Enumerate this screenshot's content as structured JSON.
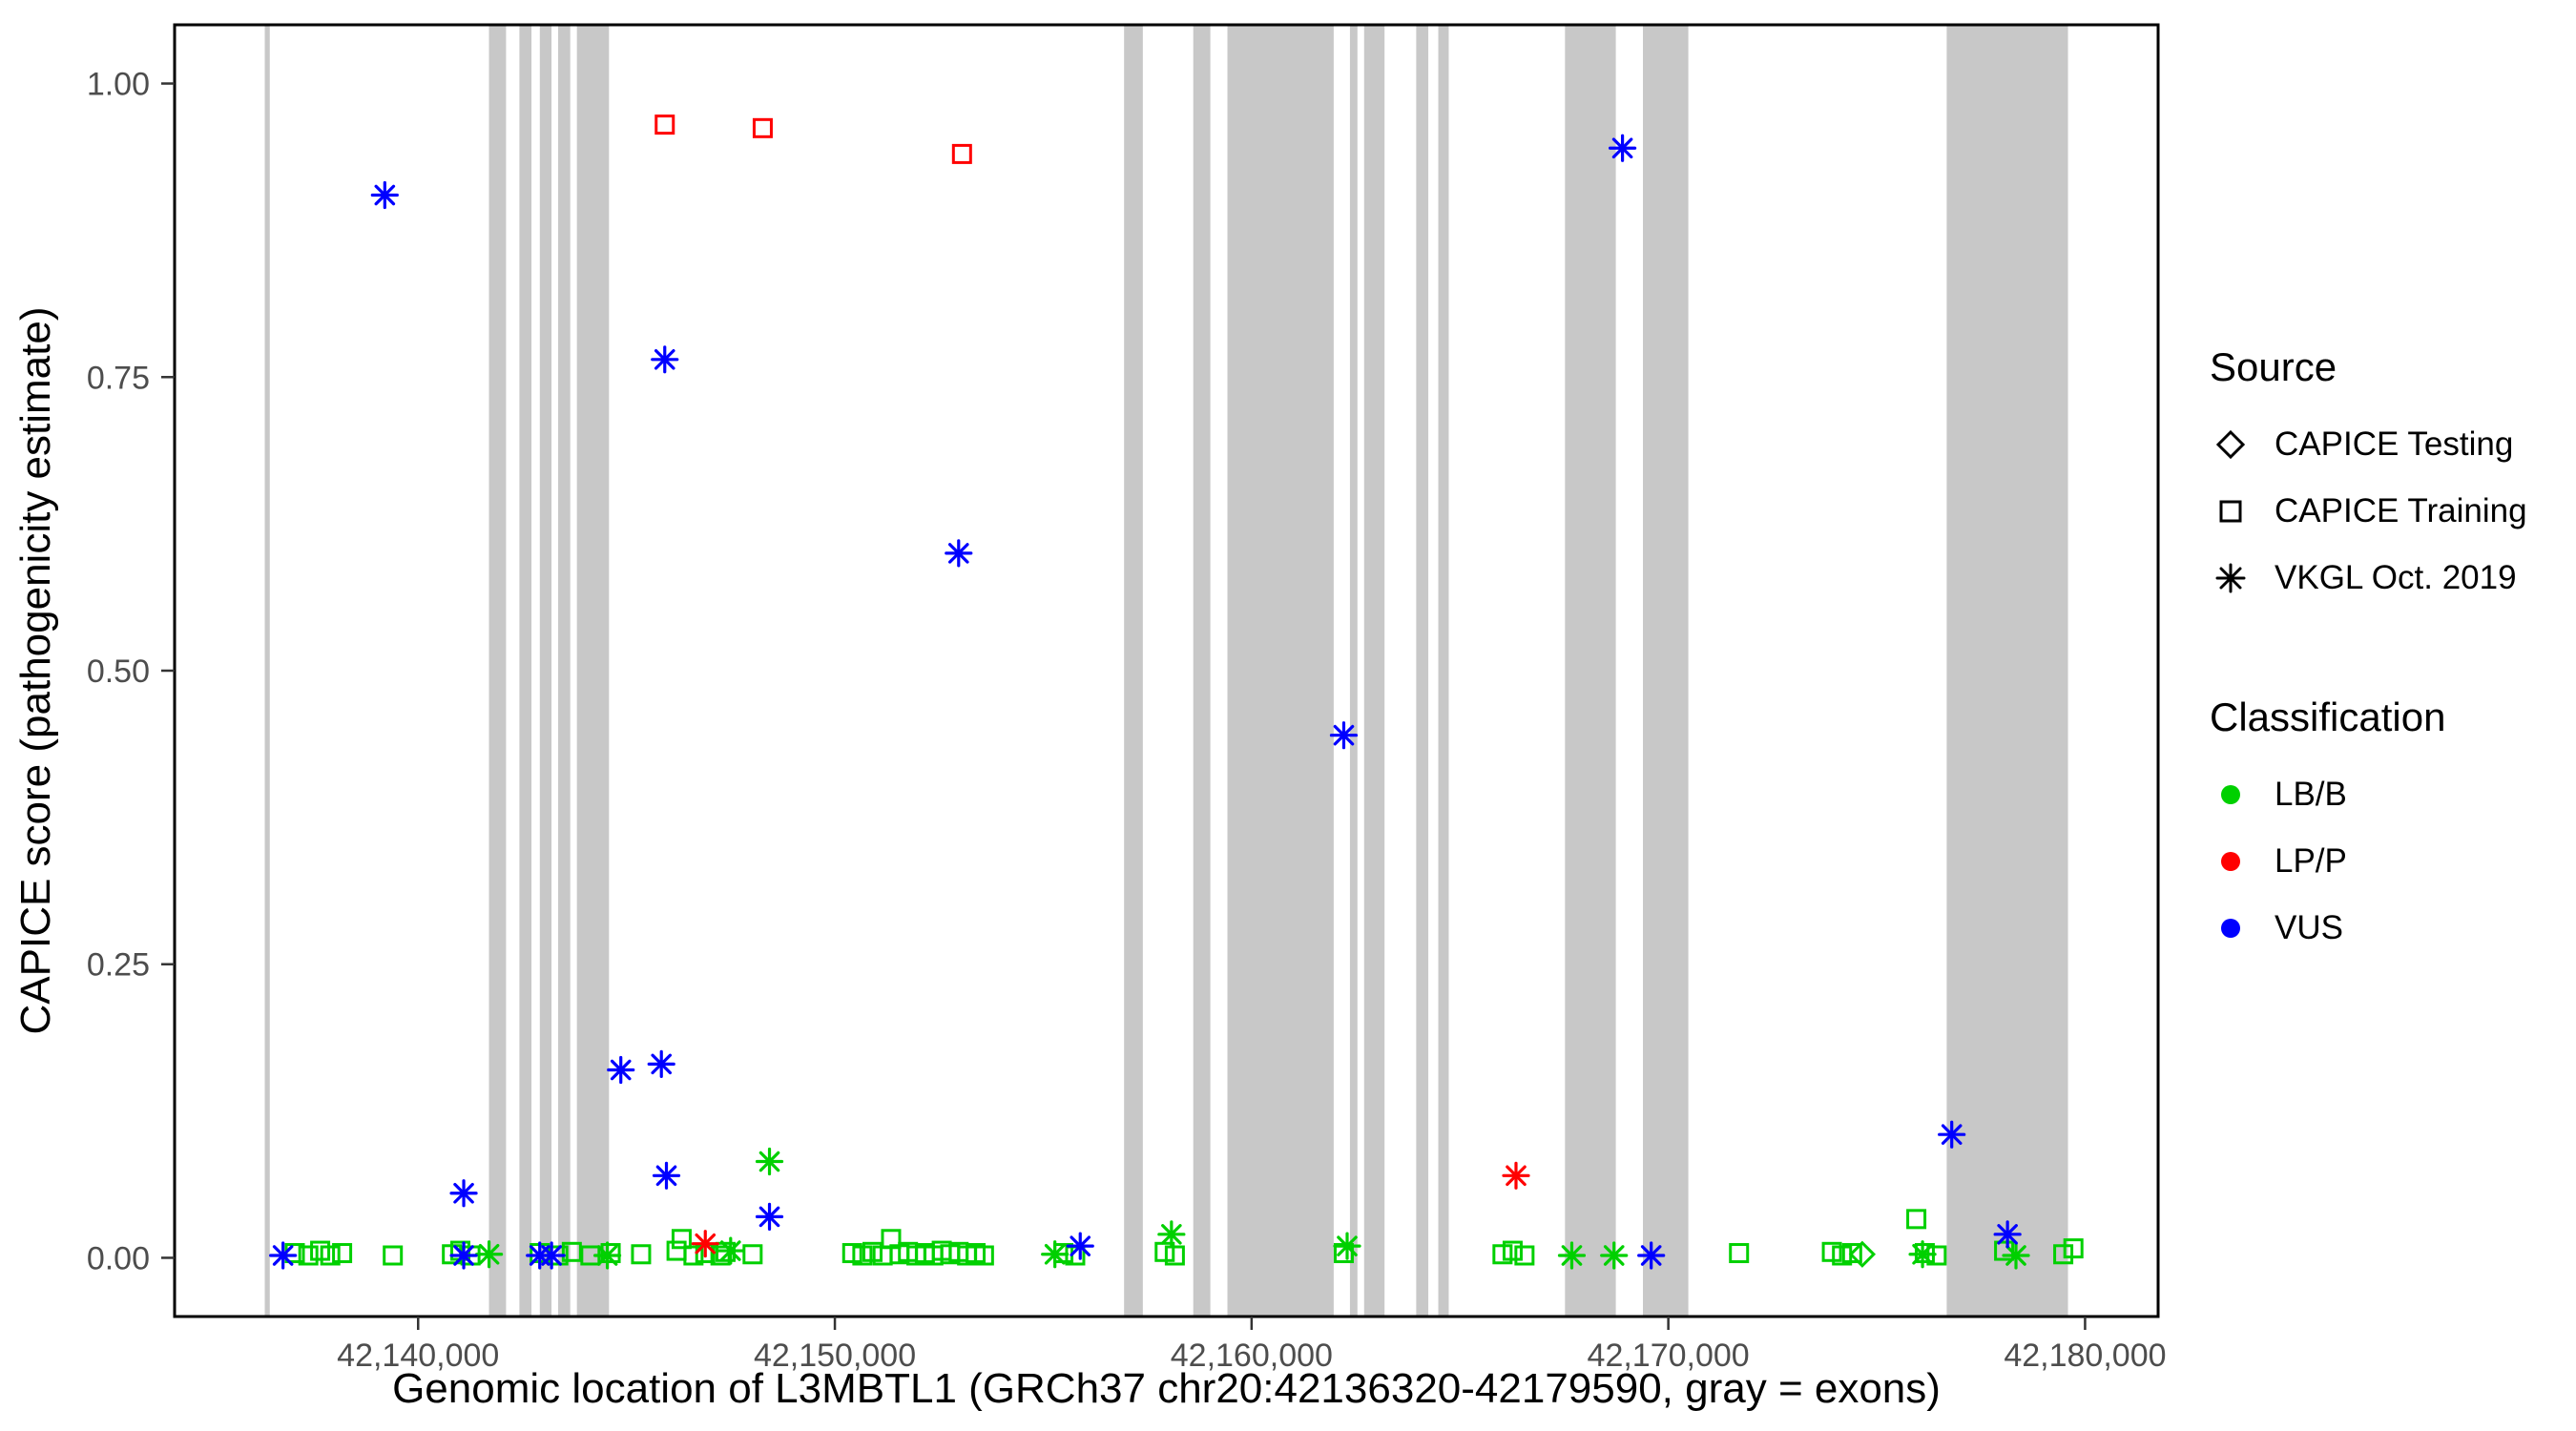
{
  "figure": {
    "background": "#FFFFFF",
    "panel_border_color": "#000000",
    "tick_label_color": "#4D4D4D",
    "axis_title_color": "#000000"
  },
  "chart_data": {
    "type": "scatter",
    "title": "",
    "xlabel": "Genomic location of L3MBTL1 (GRCh37 chr20:42136320-42179590, gray = exons)",
    "ylabel": "CAPICE score (pathogenicity estimate)",
    "xlim": [
      42134156,
      42181753
    ],
    "ylim": [
      -0.05,
      1.05
    ],
    "grid": false,
    "legend_position": "right",
    "x_ticks": [
      {
        "value": 42140000,
        "label": "42,140,000"
      },
      {
        "value": 42150000,
        "label": "42,150,000"
      },
      {
        "value": 42160000,
        "label": "42,160,000"
      },
      {
        "value": 42170000,
        "label": "42,170,000"
      },
      {
        "value": 42180000,
        "label": "42,180,000"
      }
    ],
    "y_ticks": [
      {
        "value": 0.0,
        "label": "0.00"
      },
      {
        "value": 0.25,
        "label": "0.25"
      },
      {
        "value": 0.5,
        "label": "0.50"
      },
      {
        "value": 0.75,
        "label": "0.75"
      },
      {
        "value": 1.0,
        "label": "1.00"
      }
    ],
    "exon_color": "#C8C8C8",
    "exons": [
      [
        42136320,
        42136440
      ],
      [
        42141700,
        42142110
      ],
      [
        42142430,
        42142720
      ],
      [
        42142920,
        42143200
      ],
      [
        42143360,
        42143650
      ],
      [
        42143810,
        42144580
      ],
      [
        42156940,
        42157390
      ],
      [
        42158600,
        42159010
      ],
      [
        42159420,
        42161970
      ],
      [
        42162360,
        42162540
      ],
      [
        42162700,
        42163190
      ],
      [
        42163950,
        42164240
      ],
      [
        42164480,
        42164730
      ],
      [
        42167520,
        42168740
      ],
      [
        42169390,
        42170480
      ],
      [
        42176680,
        42179590
      ]
    ],
    "series": [
      {
        "name": "CAPICE Training / LB/B",
        "source": "CAPICE Training",
        "classification": "LB/B",
        "marker": "square",
        "color": "#00D000",
        "points": [
          [
            42137041,
            0.004
          ],
          [
            42137365,
            0.002
          ],
          [
            42137649,
            0.006
          ],
          [
            42137892,
            0.002
          ],
          [
            42138176,
            0.004
          ],
          [
            42139392,
            0.002
          ],
          [
            42140811,
            0.003
          ],
          [
            42141013,
            0.006
          ],
          [
            42141256,
            0.002
          ],
          [
            42142918,
            0.004
          ],
          [
            42143364,
            0.002
          ],
          [
            42143688,
            0.005
          ],
          [
            42144134,
            0.002
          ],
          [
            42144620,
            0.004
          ],
          [
            42145350,
            0.003
          ],
          [
            42146201,
            0.006
          ],
          [
            42146323,
            0.016
          ],
          [
            42146607,
            0.002
          ],
          [
            42146891,
            0.004
          ],
          [
            42147255,
            0.002
          ],
          [
            42147377,
            0.005
          ],
          [
            42148026,
            0.003
          ],
          [
            42150417,
            0.004
          ],
          [
            42150660,
            0.002
          ],
          [
            42150903,
            0.005
          ],
          [
            42151147,
            0.002
          ],
          [
            42151349,
            0.016
          ],
          [
            42151552,
            0.003
          ],
          [
            42151755,
            0.005
          ],
          [
            42151957,
            0.002
          ],
          [
            42152160,
            0.004
          ],
          [
            42152363,
            0.002
          ],
          [
            42152565,
            0.006
          ],
          [
            42152768,
            0.003
          ],
          [
            42152970,
            0.005
          ],
          [
            42153173,
            0.002
          ],
          [
            42153376,
            0.004
          ],
          [
            42153578,
            0.002
          ],
          [
            42155483,
            0.004
          ],
          [
            42155767,
            0.002
          ],
          [
            42157915,
            0.005
          ],
          [
            42158158,
            0.002
          ],
          [
            42162212,
            0.004
          ],
          [
            42166021,
            0.003
          ],
          [
            42166264,
            0.006
          ],
          [
            42166548,
            0.002
          ],
          [
            42171696,
            0.004
          ],
          [
            42173925,
            0.005
          ],
          [
            42174168,
            0.002
          ],
          [
            42174411,
            0.004
          ],
          [
            42175951,
            0.033
          ],
          [
            42176154,
            0.004
          ],
          [
            42176438,
            0.002
          ],
          [
            42178058,
            0.006
          ],
          [
            42179477,
            0.003
          ],
          [
            42179720,
            0.008
          ]
        ]
      },
      {
        "name": "CAPICE Training / LP/P",
        "source": "CAPICE Training",
        "classification": "LP/P",
        "marker": "square",
        "color": "#FF0000",
        "points": [
          [
            42145918,
            0.965
          ],
          [
            42148269,
            0.962
          ],
          [
            42153051,
            0.94
          ]
        ]
      },
      {
        "name": "CAPICE Testing / LB/B",
        "source": "CAPICE Testing",
        "classification": "LB/B",
        "marker": "diamond",
        "color": "#00D000",
        "points": [
          [
            42174654,
            0.003
          ]
        ]
      },
      {
        "name": "VKGL Oct. 2019 / LB/B",
        "source": "VKGL Oct. 2019",
        "classification": "LB/B",
        "marker": "asterisk",
        "color": "#00D000",
        "points": [
          [
            42141702,
            0.003
          ],
          [
            42144540,
            0.002
          ],
          [
            42147499,
            0.006
          ],
          [
            42148431,
            0.082
          ],
          [
            42155280,
            0.003
          ],
          [
            42158077,
            0.02
          ],
          [
            42162293,
            0.01
          ],
          [
            42167684,
            0.002
          ],
          [
            42168697,
            0.002
          ],
          [
            42176100,
            0.003
          ],
          [
            42178342,
            0.002
          ]
        ]
      },
      {
        "name": "VKGL Oct. 2019 / LP/P",
        "source": "VKGL Oct. 2019",
        "classification": "LP/P",
        "marker": "asterisk",
        "color": "#FF0000",
        "points": [
          [
            42146891,
            0.012
          ],
          [
            42166345,
            0.07
          ]
        ]
      },
      {
        "name": "VKGL Oct. 2019 / VUS",
        "source": "VKGL Oct. 2019",
        "classification": "VUS",
        "marker": "asterisk",
        "color": "#0000FF",
        "points": [
          [
            42139200,
            0.905
          ],
          [
            42145918,
            0.765
          ],
          [
            42152970,
            0.6
          ],
          [
            42162212,
            0.445
          ],
          [
            42168900,
            0.945
          ],
          [
            42144864,
            0.16
          ],
          [
            42145837,
            0.165
          ],
          [
            42145958,
            0.07
          ],
          [
            42148431,
            0.035
          ],
          [
            42141094,
            0.055
          ],
          [
            42176801,
            0.105
          ],
          [
            42178139,
            0.02
          ],
          [
            42136758,
            0.002
          ],
          [
            42141094,
            0.002
          ],
          [
            42142918,
            0.002
          ],
          [
            42143202,
            0.002
          ],
          [
            42155888,
            0.01
          ],
          [
            42169589,
            0.002
          ]
        ]
      }
    ]
  },
  "legend": {
    "source": {
      "title": "Source",
      "items": [
        {
          "label": "CAPICE Testing",
          "marker": "diamond"
        },
        {
          "label": "CAPICE Training",
          "marker": "square"
        },
        {
          "label": "VKGL Oct. 2019",
          "marker": "asterisk"
        }
      ]
    },
    "classification": {
      "title": "Classification",
      "items": [
        {
          "label": "LB/B",
          "color": "#00D000"
        },
        {
          "label": "LP/P",
          "color": "#FF0000"
        },
        {
          "label": "VUS",
          "color": "#0000FF"
        }
      ]
    }
  }
}
